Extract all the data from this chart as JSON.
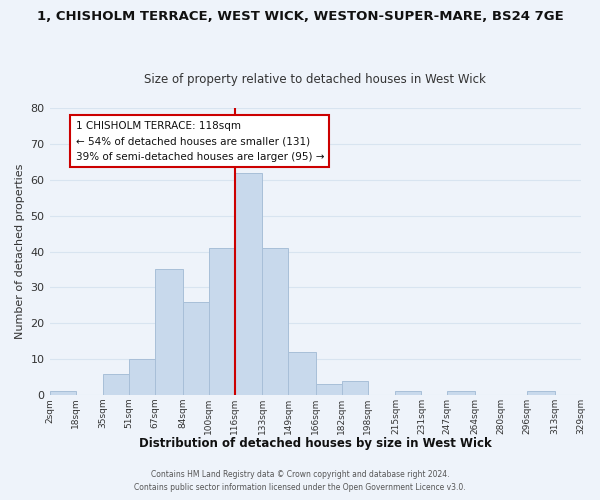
{
  "title": "1, CHISHOLM TERRACE, WEST WICK, WESTON-SUPER-MARE, BS24 7GE",
  "subtitle": "Size of property relative to detached houses in West Wick",
  "xlabel": "Distribution of detached houses by size in West Wick",
  "ylabel": "Number of detached properties",
  "bar_color": "#c8d9ec",
  "bar_edgecolor": "#a8bfd8",
  "bin_edges": [
    2,
    18,
    35,
    51,
    67,
    84,
    100,
    116,
    133,
    149,
    166,
    182,
    198,
    215,
    231,
    247,
    264,
    280,
    296,
    313,
    329
  ],
  "bin_labels": [
    "2sqm",
    "18sqm",
    "35sqm",
    "51sqm",
    "67sqm",
    "84sqm",
    "100sqm",
    "116sqm",
    "133sqm",
    "149sqm",
    "166sqm",
    "182sqm",
    "198sqm",
    "215sqm",
    "231sqm",
    "247sqm",
    "264sqm",
    "280sqm",
    "296sqm",
    "313sqm",
    "329sqm"
  ],
  "counts": [
    1,
    0,
    6,
    10,
    35,
    26,
    41,
    62,
    41,
    12,
    3,
    4,
    0,
    1,
    0,
    1,
    0,
    0,
    1,
    0
  ],
  "vline_x": 116,
  "vline_color": "#cc0000",
  "annotation_title": "1 CHISHOLM TERRACE: 118sqm",
  "annotation_line1": "← 54% of detached houses are smaller (131)",
  "annotation_line2": "39% of semi-detached houses are larger (95) →",
  "annotation_box_edgecolor": "#cc0000",
  "ylim": [
    0,
    80
  ],
  "yticks": [
    0,
    10,
    20,
    30,
    40,
    50,
    60,
    70,
    80
  ],
  "footer1": "Contains HM Land Registry data © Crown copyright and database right 2024.",
  "footer2": "Contains public sector information licensed under the Open Government Licence v3.0.",
  "grid_color": "#d8e4f0",
  "background_color": "#eef3fa"
}
